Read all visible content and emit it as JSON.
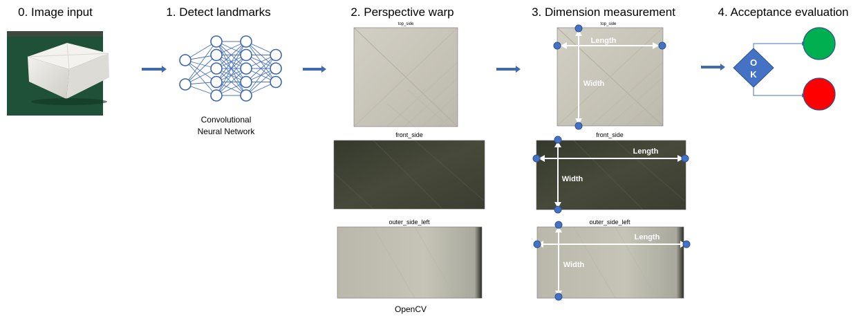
{
  "stages": [
    {
      "id": "0",
      "title": "0. Image input"
    },
    {
      "id": "1",
      "title": "1. Detect landmarks",
      "caption_lines": [
        "Convolutional",
        "Neural Network"
      ]
    },
    {
      "id": "2",
      "title": "2. Perspective warp",
      "caption": "OpenCV"
    },
    {
      "id": "3",
      "title": "3. Dimension measurement"
    },
    {
      "id": "4",
      "title": "4. Acceptance evaluation"
    }
  ],
  "panels": {
    "top": "top_side",
    "front": "front_side",
    "left": "outer_side_left"
  },
  "dimension_labels": {
    "length": "Length",
    "width": "Width"
  },
  "decision": {
    "line1": "O",
    "line2": "K"
  },
  "colors": {
    "arrow": "#3f6aad",
    "node_stroke": "#3a64b0",
    "edge": "#4a72c0",
    "marker": "#4472c4",
    "decision": "#4472c4",
    "pass": "#00b050",
    "fail": "#ff0000",
    "paper_top": "#c9c6bb",
    "paper_front": "#3f4233",
    "paper_left": "#c0bfb2"
  },
  "network": {
    "layers": [
      2,
      5,
      5,
      3
    ]
  }
}
